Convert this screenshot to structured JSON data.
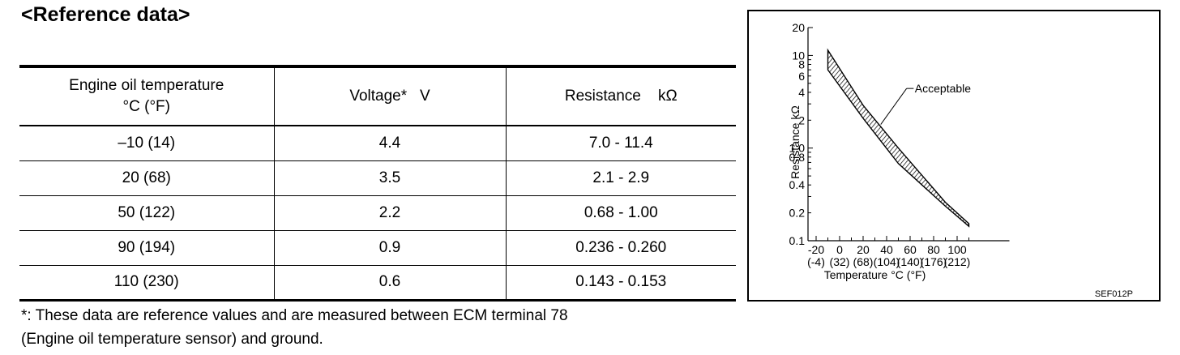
{
  "heading": "<Reference data>",
  "table": {
    "headers": {
      "temp_line1": "Engine oil temperature",
      "temp_line2": "°C (°F)",
      "voltage": "Voltage*   V",
      "resistance": "Resistance    kΩ"
    },
    "rows": [
      {
        "temp": "–10 (14)",
        "voltage": "4.4",
        "resistance": "7.0 - 11.4"
      },
      {
        "temp": "20 (68)",
        "voltage": "3.5",
        "resistance": "2.1 - 2.9"
      },
      {
        "temp": "50 (122)",
        "voltage": "2.2",
        "resistance": "0.68 - 1.00"
      },
      {
        "temp": "90 (194)",
        "voltage": "0.9",
        "resistance": "0.236 - 0.260"
      },
      {
        "temp": "110 (230)",
        "voltage": "0.6",
        "resistance": "0.143 - 0.153"
      }
    ]
  },
  "note": {
    "line1": "*: These data are reference values and are measured between ECM terminal 78",
    "line2": "(Engine oil temperature sensor) and ground."
  },
  "chart_data": {
    "type": "area",
    "xlabel": "Temperature °C (°F)",
    "ylabel": "Resistance  kΩ",
    "y_scale": "log",
    "ylim": [
      0.1,
      20
    ],
    "xlim": [
      -20,
      110
    ],
    "x_ticks_c": [
      "-20",
      "0",
      "20",
      "40",
      "60",
      "80",
      "100"
    ],
    "x_ticks_f": [
      "(-4)",
      "(32)",
      "(68)",
      "(104)",
      "(140)",
      "(176)",
      "(212)"
    ],
    "y_ticks": [
      "20",
      "10",
      "8",
      "6",
      "4",
      "2",
      "1.0",
      "0.8",
      "0.4",
      "0.2",
      "0.1"
    ],
    "series": [
      {
        "name": "Acceptable",
        "x": [
          -10,
          20,
          50,
          90,
          110
        ],
        "low": [
          7.0,
          2.1,
          0.68,
          0.236,
          0.143
        ],
        "high": [
          11.4,
          2.9,
          1.0,
          0.26,
          0.153
        ]
      }
    ],
    "annotation": "Acceptable",
    "code": "SEF012P"
  }
}
